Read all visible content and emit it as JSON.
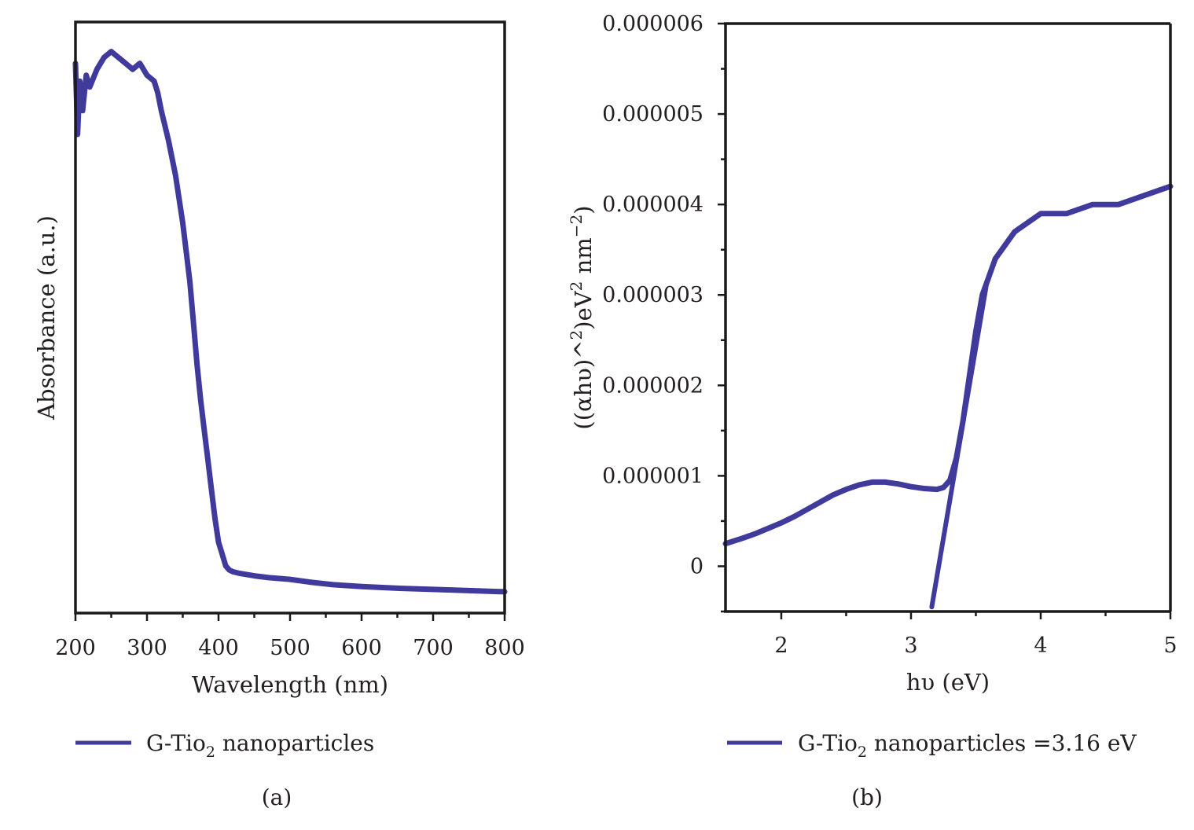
{
  "colors": {
    "series": "#3f3a9b",
    "axis": "#1a1a1a",
    "text": "#231f20"
  },
  "chart_data": [
    {
      "type": "line",
      "panel_label": "(a)",
      "xlabel": "Wavelength (nm)",
      "ylabel": "Absorbance (a.u.)",
      "xlim": [
        200,
        800
      ],
      "ylim": [
        0,
        1
      ],
      "y_tick_labels_shown": false,
      "xticks": [
        200,
        300,
        400,
        500,
        600,
        700,
        800
      ],
      "xtick_labels": [
        "200",
        "300",
        "400",
        "500",
        "600",
        "700",
        "800"
      ],
      "legend": {
        "position": "bottom-left",
        "name": "G-Tio",
        "subscript": "2",
        "suffix": " nanoparticles"
      },
      "grid": false,
      "series": [
        {
          "name": "G-Tio2 nanoparticles",
          "x": [
            200,
            203,
            206,
            210,
            215,
            220,
            230,
            240,
            250,
            260,
            270,
            280,
            290,
            300,
            310,
            315,
            320,
            330,
            340,
            350,
            360,
            365,
            370,
            375,
            380,
            385,
            390,
            395,
            400,
            405,
            410,
            415,
            420,
            430,
            450,
            470,
            500,
            530,
            560,
            600,
            650,
            700,
            750,
            800
          ],
          "y": [
            0.93,
            0.81,
            0.9,
            0.85,
            0.91,
            0.89,
            0.92,
            0.94,
            0.95,
            0.94,
            0.93,
            0.92,
            0.93,
            0.91,
            0.9,
            0.88,
            0.85,
            0.8,
            0.74,
            0.66,
            0.56,
            0.49,
            0.42,
            0.36,
            0.31,
            0.26,
            0.21,
            0.16,
            0.12,
            0.1,
            0.08,
            0.073,
            0.07,
            0.067,
            0.063,
            0.06,
            0.057,
            0.052,
            0.048,
            0.045,
            0.042,
            0.04,
            0.038,
            0.036
          ]
        }
      ]
    },
    {
      "type": "line",
      "panel_label": "(b)",
      "xlabel": "hυ (eV)",
      "ylabel": "((αhυ)^2)eV² nm⁻²",
      "xlim": [
        1.57,
        5.0
      ],
      "ylim": [
        -5e-07,
        6e-06
      ],
      "xticks": [
        2,
        3,
        4,
        5
      ],
      "xtick_labels": [
        "2",
        "3",
        "4",
        "5"
      ],
      "yticks": [
        0,
        1e-06,
        2e-06,
        3e-06,
        4e-06,
        5e-06,
        6e-06
      ],
      "ytick_labels": [
        "0",
        "0.000001",
        "0.000002",
        "0.000003",
        "0.000004",
        "0.000005",
        "0.000006"
      ],
      "legend": {
        "position": "bottom-left",
        "name": "G-Tio",
        "subscript": "2",
        "suffix": " nanoparticles =3.16 eV"
      },
      "grid": false,
      "series": [
        {
          "name": "G-Tio2 nanoparticles",
          "x": [
            1.57,
            1.7,
            1.8,
            1.9,
            2.0,
            2.1,
            2.2,
            2.3,
            2.4,
            2.5,
            2.6,
            2.7,
            2.8,
            2.9,
            3.0,
            3.1,
            3.2,
            3.25,
            3.3,
            3.35,
            3.4,
            3.45,
            3.5,
            3.55,
            3.6,
            3.65,
            3.7,
            3.75,
            3.8,
            3.9,
            4.0,
            4.2,
            4.4,
            4.6,
            4.8,
            5.0
          ],
          "y": [
            2.5e-07,
            3.1e-07,
            3.6e-07,
            4.2e-07,
            4.8e-07,
            5.5e-07,
            6.3e-07,
            7.1e-07,
            7.9e-07,
            8.5e-07,
            9e-07,
            9.3e-07,
            9.3e-07,
            9.1e-07,
            8.8e-07,
            8.6e-07,
            8.5e-07,
            8.7e-07,
            9.5e-07,
            1.2e-06,
            1.6e-06,
            2.1e-06,
            2.6e-06,
            3e-06,
            3.2e-06,
            3.4e-06,
            3.5e-06,
            3.6e-06,
            3.7e-06,
            3.8e-06,
            3.9e-06,
            3.9e-06,
            4e-06,
            4e-06,
            4.1e-06,
            4.2e-06
          ]
        }
      ],
      "annotations": [
        {
          "type": "tangent_line",
          "x": [
            3.16,
            3.58
          ],
          "y": [
            -4.5e-07,
            3.1e-06
          ]
        }
      ]
    }
  ]
}
